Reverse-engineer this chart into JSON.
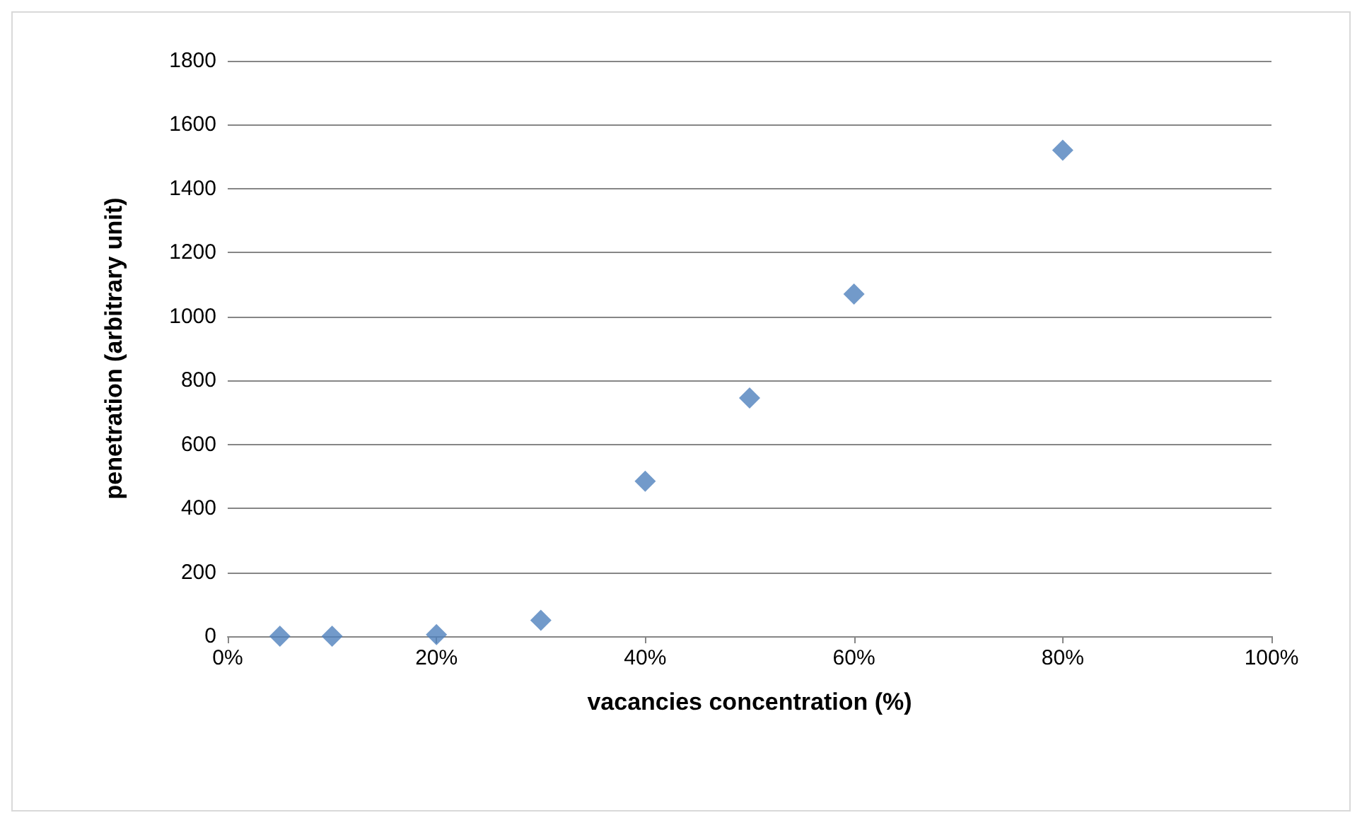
{
  "chart_data": {
    "type": "scatter",
    "xlabel": "vacancies concentration (%)",
    "ylabel": "penetration (arbitrary unit)",
    "x": [
      5,
      10,
      20,
      30,
      40,
      50,
      60,
      80
    ],
    "series": [
      {
        "color": "#4f81bd",
        "values": [
          0,
          0,
          5,
          50,
          485,
          745,
          1070,
          1520
        ]
      }
    ],
    "xlim": [
      0,
      100
    ],
    "xticks": [
      {
        "value": 0,
        "label": "0%"
      },
      {
        "value": 20,
        "label": "20%"
      },
      {
        "value": 40,
        "label": "40%"
      },
      {
        "value": 60,
        "label": "60%"
      },
      {
        "value": 80,
        "label": "80%"
      },
      {
        "value": 100,
        "label": "100%"
      }
    ],
    "ylim": [
      0,
      1800
    ],
    "yticks": [
      0,
      200,
      400,
      600,
      800,
      1000,
      1200,
      1400,
      1600,
      1800
    ],
    "grid": "y",
    "marker": "diamond"
  }
}
